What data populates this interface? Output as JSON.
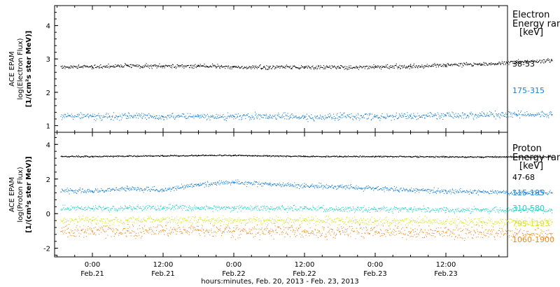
{
  "chart_data": [
    {
      "type": "scatter",
      "panel": "electron",
      "ylabel_lines": [
        "ACE EPAM",
        "log(Electron Flux)",
        "[1/(cm²s ster MeV)]"
      ],
      "ylim": [
        0.8,
        4.6
      ],
      "yticks": [
        1,
        2,
        3,
        4
      ],
      "legend_title_lines": [
        "Electron",
        "Energy range",
        "[keV]"
      ],
      "series": [
        {
          "name": "38-53",
          "color": "#000000",
          "x": [
            0,
            6,
            12,
            18,
            24,
            30,
            36,
            42,
            48,
            54,
            60,
            66,
            72,
            78
          ],
          "y": [
            2.76,
            2.8,
            2.78,
            2.79,
            2.76,
            2.75,
            2.76,
            2.74,
            2.76,
            2.77,
            2.82,
            2.84,
            2.9,
            2.95
          ]
        },
        {
          "name": "175-315",
          "color": "#1a7fd4",
          "x": [
            0,
            6,
            12,
            18,
            24,
            30,
            36,
            42,
            48,
            54,
            60,
            66,
            72,
            78
          ],
          "y": [
            1.28,
            1.28,
            1.27,
            1.27,
            1.27,
            1.26,
            1.26,
            1.26,
            1.27,
            1.28,
            1.3,
            1.31,
            1.33,
            1.33
          ]
        }
      ]
    },
    {
      "type": "scatter",
      "panel": "proton",
      "ylabel_lines": [
        "ACE EPAM",
        "log(Proton Flux)",
        "[1/(cm²s ster MeV)]"
      ],
      "ylim": [
        -2.5,
        4.7
      ],
      "yticks": [
        -2,
        0,
        2,
        4
      ],
      "legend_title_lines": [
        "Proton",
        "Energy range",
        "[keV]"
      ],
      "series": [
        {
          "name": "47-68",
          "color": "#000000",
          "x": [
            0,
            6,
            12,
            18,
            24,
            30,
            36,
            42,
            48,
            54,
            60,
            66,
            72,
            78
          ],
          "y": [
            3.3,
            3.32,
            3.33,
            3.36,
            3.36,
            3.33,
            3.31,
            3.3,
            3.3,
            3.29,
            3.28,
            3.27,
            3.27,
            3.27
          ]
        },
        {
          "name": "115-195",
          "color": "#1a7fd4",
          "x": [
            0,
            6,
            12,
            18,
            24,
            30,
            36,
            42,
            48,
            54,
            60,
            66,
            72,
            78
          ],
          "y": [
            1.3,
            1.45,
            1.35,
            1.7,
            1.8,
            1.7,
            1.6,
            1.55,
            1.45,
            1.35,
            1.3,
            1.25,
            1.2,
            1.2
          ]
        },
        {
          "name": "310-580",
          "color": "#22d4c8",
          "x": [
            0,
            6,
            12,
            18,
            24,
            30,
            36,
            42,
            48,
            54,
            60,
            66,
            72,
            78
          ],
          "y": [
            0.3,
            0.3,
            0.35,
            0.35,
            0.3,
            0.3,
            0.3,
            0.25,
            0.25,
            0.25,
            0.2,
            0.2,
            0.2,
            0.2
          ]
        },
        {
          "name": "795-1193",
          "color": "#d8e81c",
          "x": [
            0,
            6,
            12,
            18,
            24,
            30,
            36,
            42,
            48,
            54,
            60,
            66,
            72,
            78
          ],
          "y": [
            -0.4,
            -0.4,
            -0.35,
            -0.35,
            -0.4,
            -0.4,
            -0.4,
            -0.4,
            -0.45,
            -0.45,
            -0.45,
            -0.5,
            -0.5,
            -0.5
          ]
        },
        {
          "name": "1060-1900",
          "color": "#f08a1a",
          "x": [
            0,
            6,
            12,
            18,
            24,
            30,
            36,
            42,
            48,
            54,
            60,
            66,
            72,
            78
          ],
          "y": [
            -1.0,
            -1.0,
            -0.95,
            -0.95,
            -1.0,
            -1.0,
            -1.05,
            -1.05,
            -1.05,
            -1.1,
            -1.1,
            -1.1,
            -1.15,
            -1.15
          ]
        }
      ]
    }
  ],
  "xaxis": {
    "label": "hours:minutes, Feb. 20, 2013 - Feb. 23, 2013",
    "ticks": [
      {
        "hour": 0,
        "line1": "0:00",
        "line2": "Feb.21"
      },
      {
        "hour": 12,
        "line1": "12:00",
        "line2": "Feb.21"
      },
      {
        "hour": 24,
        "line1": "0:00",
        "line2": "Feb.22"
      },
      {
        "hour": 36,
        "line1": "12:00",
        "line2": "Feb.22"
      },
      {
        "hour": 48,
        "line1": "0:00",
        "line2": "Feb.23"
      },
      {
        "hour": 60,
        "line1": "12:00",
        "line2": "Feb.23"
      }
    ]
  }
}
